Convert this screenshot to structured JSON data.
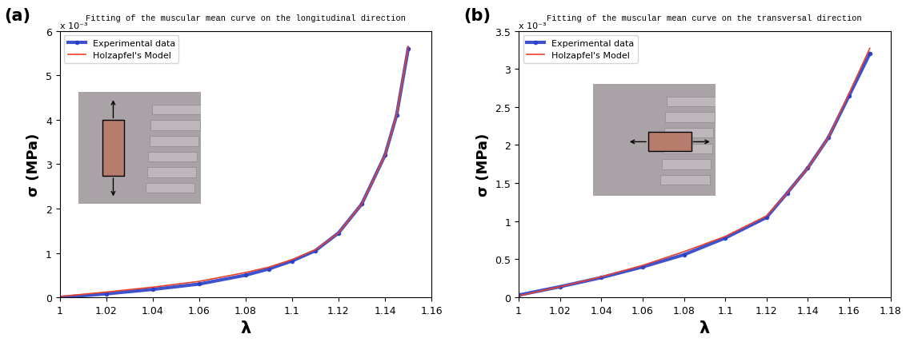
{
  "chart_data": [
    {
      "type": "line",
      "title": "Fitting of the muscular mean curve on the longitudinal direction",
      "x_label": "λ",
      "y_label": "σ (MPa)",
      "annotations": [
        "(a)",
        "x 10⁻³"
      ],
      "legend": "upper left",
      "xlim": [
        1,
        1.16
      ],
      "xticks": [
        1,
        1.02,
        1.04,
        1.06,
        1.08,
        1.1,
        1.12,
        1.14,
        1.16
      ],
      "ylim": [
        0,
        6
      ],
      "yticks": [
        0,
        1,
        2,
        3,
        4,
        5,
        6
      ],
      "series": [
        {
          "name": "Experimental data",
          "color": "#2a3fc8",
          "marker": "o",
          "line_style": "solid",
          "x": [
            1.0,
            1.02,
            1.04,
            1.06,
            1.08,
            1.09,
            1.1,
            1.11,
            1.12,
            1.13,
            1.14,
            1.145,
            1.15
          ],
          "values": [
            0.0,
            0.08,
            0.18,
            0.3,
            0.5,
            0.64,
            0.82,
            1.05,
            1.45,
            2.1,
            3.2,
            4.1,
            5.6
          ]
        },
        {
          "name": "Holzapfel's Model",
          "color": "#e8412c",
          "marker": "none",
          "line_style": "solid",
          "x": [
            1.0,
            1.02,
            1.04,
            1.06,
            1.08,
            1.09,
            1.1,
            1.11,
            1.12,
            1.13,
            1.14,
            1.145,
            1.15
          ],
          "values": [
            0.02,
            0.12,
            0.23,
            0.36,
            0.56,
            0.68,
            0.85,
            1.07,
            1.45,
            2.1,
            3.2,
            4.1,
            5.65
          ]
        }
      ]
    },
    {
      "type": "line",
      "title": "Fitting of the muscular mean curve on the transversal direction",
      "x_label": "λ",
      "y_label": "σ (MPa)",
      "annotations": [
        "(b)",
        "x 10⁻³"
      ],
      "legend": "upper left",
      "xlim": [
        1,
        1.18
      ],
      "xticks": [
        1,
        1.02,
        1.04,
        1.06,
        1.08,
        1.1,
        1.12,
        1.14,
        1.16,
        1.18
      ],
      "ylim": [
        0,
        3.5
      ],
      "yticks": [
        0,
        0.5,
        1,
        1.5,
        2,
        2.5,
        3,
        3.5
      ],
      "series": [
        {
          "name": "Experimental data",
          "color": "#2a3fc8",
          "marker": "o",
          "line_style": "solid",
          "x": [
            1.0,
            1.02,
            1.04,
            1.06,
            1.08,
            1.1,
            1.12,
            1.13,
            1.14,
            1.15,
            1.16,
            1.17
          ],
          "values": [
            0.03,
            0.14,
            0.26,
            0.4,
            0.56,
            0.78,
            1.05,
            1.37,
            1.7,
            2.1,
            2.65,
            3.2
          ]
        },
        {
          "name": "Holzapfel's Model",
          "color": "#e8412c",
          "marker": "none",
          "line_style": "solid",
          "x": [
            1.0,
            1.02,
            1.04,
            1.06,
            1.08,
            1.1,
            1.12,
            1.13,
            1.14,
            1.15,
            1.16,
            1.17
          ],
          "values": [
            0.02,
            0.14,
            0.27,
            0.42,
            0.6,
            0.8,
            1.07,
            1.37,
            1.7,
            2.1,
            2.68,
            3.27
          ]
        }
      ]
    }
  ]
}
